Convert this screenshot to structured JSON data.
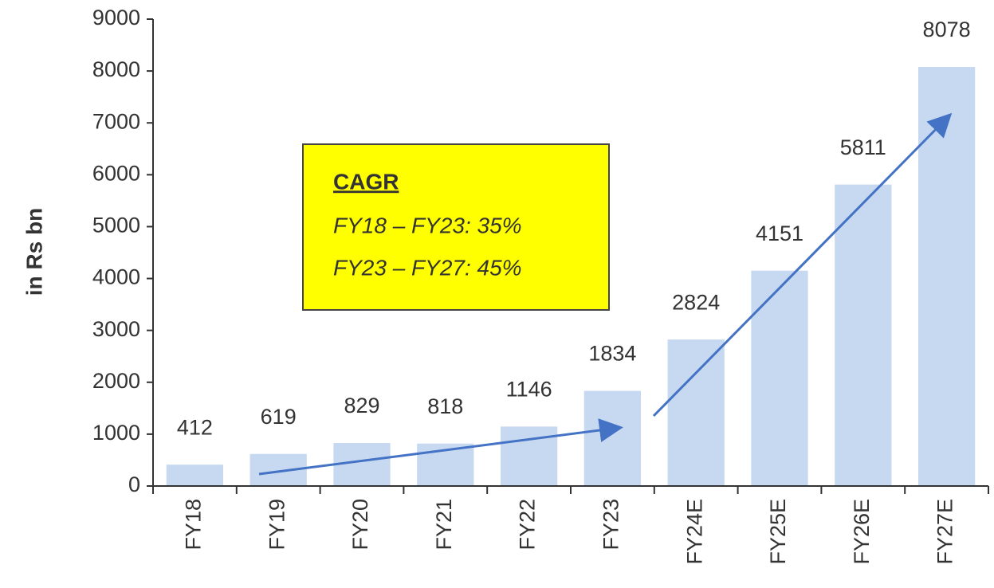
{
  "chart_data": {
    "type": "bar",
    "y_label": "in Rs bn",
    "categories": [
      "FY18",
      "FY19",
      "FY20",
      "FY21",
      "FY22",
      "FY23",
      "FY24E",
      "FY25E",
      "FY26E",
      "FY27E"
    ],
    "values": [
      412,
      619,
      829,
      818,
      1146,
      1834,
      2824,
      4151,
      5811,
      8078
    ],
    "color": "#c6d9f1",
    "ylim": [
      0,
      9000
    ],
    "yticks": [
      0,
      1000,
      2000,
      3000,
      4000,
      5000,
      6000,
      7000,
      8000,
      9000
    ],
    "grid": false,
    "annotation": {
      "title": "CAGR",
      "lines": [
        "FY18 – FY23: 35%",
        "FY23 – FY27: 45%"
      ]
    }
  }
}
